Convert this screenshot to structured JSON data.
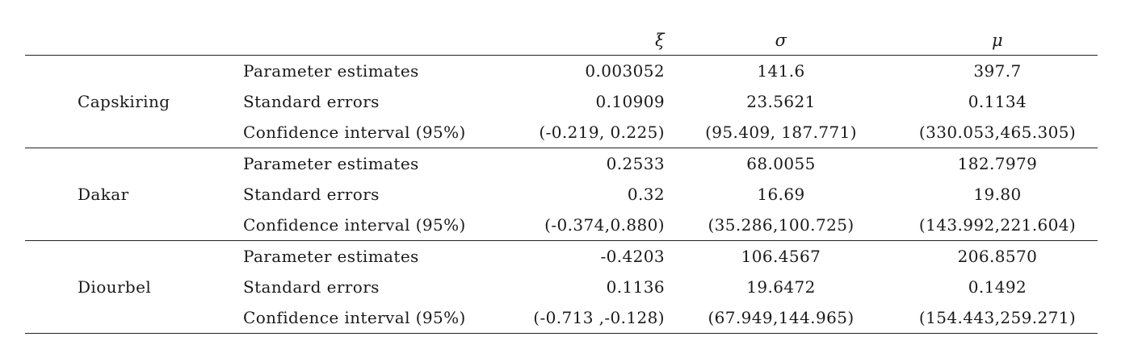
{
  "header": {
    "xi": "ξ",
    "sigma": "σ",
    "mu": "μ"
  },
  "groups": [
    {
      "site": "Capskiring",
      "rows": [
        {
          "label": "Parameter estimates",
          "xi": "0.003052",
          "sigma": "141.6",
          "mu": "397.7"
        },
        {
          "label": "Standard errors",
          "xi": "0.10909",
          "sigma": "23.5621",
          "mu": "0.1134"
        },
        {
          "label": "Confidence interval (95%)",
          "xi": "(-0.219, 0.225)",
          "sigma": "(95.409, 187.771)",
          "mu": "(330.053,465.305)"
        }
      ]
    },
    {
      "site": "Dakar",
      "rows": [
        {
          "label": "Parameter estimates",
          "xi": "0.2533",
          "sigma": "68.0055",
          "mu": "182.7979"
        },
        {
          "label": "Standard errors",
          "xi": "0.32",
          "sigma": "16.69",
          "mu": "19.80"
        },
        {
          "label": "Confidence interval (95%)",
          "xi": "(-0.374,0.880)",
          "sigma": "(35.286,100.725)",
          "mu": "(143.992,221.604)"
        }
      ]
    },
    {
      "site": "Diourbel",
      "rows": [
        {
          "label": "Parameter estimates",
          "xi": "-0.4203",
          "sigma": "106.4567",
          "mu": "206.8570"
        },
        {
          "label": "Standard errors",
          "xi": "0.1136",
          "sigma": "19.6472",
          "mu": "0.1492"
        },
        {
          "label": "Confidence interval (95%)",
          "xi": "(-0.713 ,-0.128)",
          "sigma": "(67.949,144.965)",
          "mu": "(154.443,259.271)"
        }
      ]
    }
  ]
}
